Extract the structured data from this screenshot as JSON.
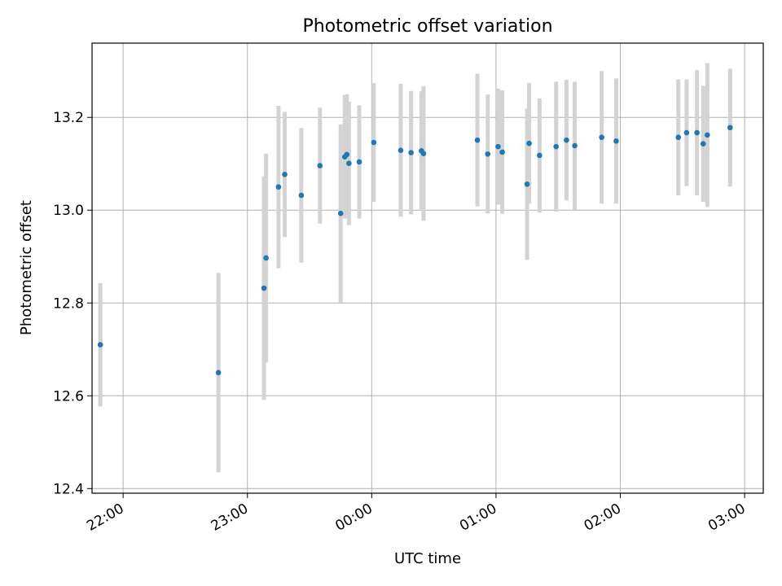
{
  "chart_data": {
    "type": "scatter",
    "title": "Photometric offset variation",
    "xlabel": "UTC time",
    "ylabel": "Photometric offset",
    "x_axis": "time",
    "x_ticks": [
      "22:00",
      "23:00",
      "00:00",
      "01:00",
      "02:00",
      "03:00"
    ],
    "y_ticks": [
      "12.4",
      "12.6",
      "12.8",
      "13.0",
      "13.2"
    ],
    "xlim": [
      "21:45",
      "03:09"
    ],
    "ylim": [
      12.39,
      13.36
    ],
    "grid": true,
    "colors": {
      "point": "#1f77b4",
      "errorbar": "#d3d3d3",
      "grid": "#b0b0b0"
    },
    "points": [
      {
        "x": "21:49",
        "y": 12.71,
        "err": 0.133
      },
      {
        "x": "22:46",
        "y": 12.65,
        "err": 0.215
      },
      {
        "x": "23:08",
        "y": 12.832,
        "err": 0.241
      },
      {
        "x": "23:09",
        "y": 12.897,
        "err": 0.225
      },
      {
        "x": "23:15",
        "y": 13.05,
        "err": 0.175
      },
      {
        "x": "23:18",
        "y": 13.077,
        "err": 0.135
      },
      {
        "x": "23:26",
        "y": 13.032,
        "err": 0.145
      },
      {
        "x": "23:35",
        "y": 13.096,
        "err": 0.125
      },
      {
        "x": "23:45",
        "y": 12.993,
        "err": 0.192
      },
      {
        "x": "23:47",
        "y": 13.115,
        "err": 0.133
      },
      {
        "x": "23:48",
        "y": 13.12,
        "err": 0.13
      },
      {
        "x": "23:49",
        "y": 13.101,
        "err": 0.133
      },
      {
        "x": "23:54",
        "y": 13.104,
        "err": 0.122
      },
      {
        "x": "00:01",
        "y": 13.146,
        "err": 0.128
      },
      {
        "x": "00:14",
        "y": 13.129,
        "err": 0.143
      },
      {
        "x": "00:19",
        "y": 13.124,
        "err": 0.133
      },
      {
        "x": "00:24",
        "y": 13.128,
        "err": 0.128
      },
      {
        "x": "00:25",
        "y": 13.122,
        "err": 0.145
      },
      {
        "x": "00:51",
        "y": 13.151,
        "err": 0.143
      },
      {
        "x": "00:56",
        "y": 13.121,
        "err": 0.128
      },
      {
        "x": "01:01",
        "y": 13.137,
        "err": 0.125
      },
      {
        "x": "01:03",
        "y": 13.125,
        "err": 0.133
      },
      {
        "x": "01:15",
        "y": 13.056,
        "err": 0.163
      },
      {
        "x": "01:16",
        "y": 13.144,
        "err": 0.13
      },
      {
        "x": "01:21",
        "y": 13.118,
        "err": 0.123
      },
      {
        "x": "01:29",
        "y": 13.137,
        "err": 0.14
      },
      {
        "x": "01:34",
        "y": 13.151,
        "err": 0.13
      },
      {
        "x": "01:38",
        "y": 13.139,
        "err": 0.138
      },
      {
        "x": "01:51",
        "y": 13.157,
        "err": 0.143
      },
      {
        "x": "01:58",
        "y": 13.149,
        "err": 0.135
      },
      {
        "x": "02:28",
        "y": 13.157,
        "err": 0.125
      },
      {
        "x": "02:32",
        "y": 13.167,
        "err": 0.115
      },
      {
        "x": "02:37",
        "y": 13.167,
        "err": 0.135
      },
      {
        "x": "02:40",
        "y": 13.143,
        "err": 0.125
      },
      {
        "x": "02:42",
        "y": 13.162,
        "err": 0.155
      },
      {
        "x": "02:53",
        "y": 13.178,
        "err": 0.127
      }
    ]
  }
}
